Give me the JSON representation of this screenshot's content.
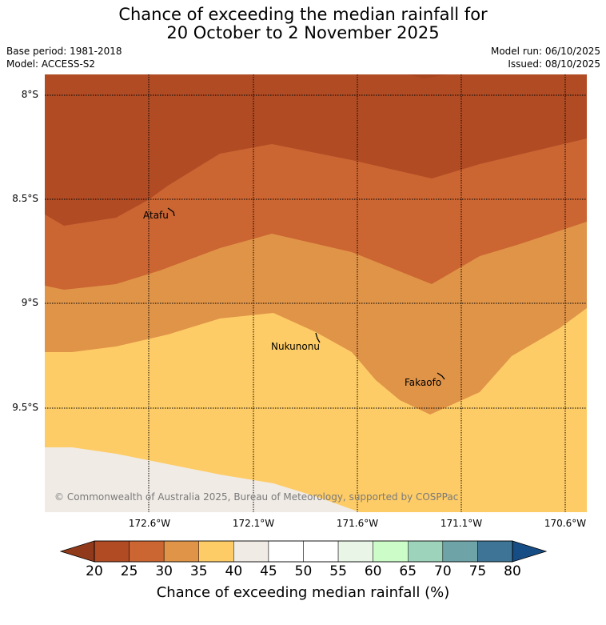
{
  "header": {
    "title_line1": "Chance of exceeding the median rainfall for",
    "title_line2": "20 October to 2 November 2025",
    "base_period": "Base period: 1981-2018",
    "model": "Model: ACCESS-S2",
    "model_run": "Model run: 06/10/2025",
    "issued": "Issued: 08/10/2025"
  },
  "map": {
    "lat_labels": [
      "8°S",
      "8.5°S",
      "9°S",
      "9.5°S"
    ],
    "lon_labels": [
      "172.6°W",
      "172.1°W",
      "171.6°W",
      "171.1°W",
      "170.6°W"
    ],
    "places": [
      "Atafu",
      "Nukunonu",
      "Fakaofo"
    ],
    "copyright": "© Commonwealth of Australia 2025, Bureau of Meteorology, supported by COSPPac",
    "category_colors": {
      "20-25": "#b04b24",
      "25-30": "#cb6532",
      "30-35": "#e09448",
      "35-40": "#fecc66",
      "40-45": "#f0ebe5"
    },
    "below_20_color": "#a8451f"
  },
  "colorbar": {
    "ticks": [
      "20",
      "25",
      "30",
      "35",
      "40",
      "45",
      "50",
      "55",
      "60",
      "65",
      "70",
      "75",
      "80"
    ],
    "colors": [
      "#b04b24",
      "#cb6532",
      "#e09448",
      "#fecc66",
      "#f0ebe5",
      "#ffffff",
      "#ffffff",
      "#e9f5e6",
      "#ccfdc8",
      "#9ed3bb",
      "#6ea4a8",
      "#3e7596"
    ],
    "low_extend_color": "#913a1b",
    "high_extend_color": "#174d85",
    "label": "Chance of exceeding median rainfall (%)"
  }
}
